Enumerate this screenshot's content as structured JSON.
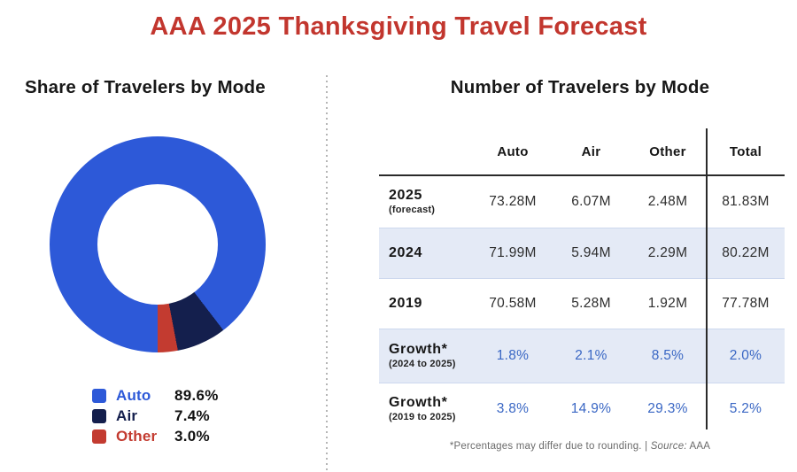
{
  "page": {
    "title": "AAA 2025 Thanksgiving Travel Forecast",
    "footnote_prefix": "*Percentages may differ due to rounding. |",
    "footnote_source_label": "Source:",
    "footnote_source_value": "AAA"
  },
  "colors": {
    "title_red": "#C2362E",
    "auto_blue": "#2D59D8",
    "air_navy": "#141F4D",
    "other_red": "#C33B30",
    "growth_blue": "#3A67C4",
    "band_blue": "#E4EAF6",
    "text_dark": "#1B1B1B",
    "line_dark": "#2A2A2A",
    "muted_gray": "#6B6B6B",
    "divider_gray": "#B5B5B5"
  },
  "chart_data": [
    {
      "type": "pie",
      "title": "Share of Travelers by Mode",
      "labels": [
        "Auto",
        "Air",
        "Other"
      ],
      "values": [
        89.6,
        7.4,
        3.0
      ],
      "unit": "%",
      "colors": [
        "#2D59D8",
        "#141F4D",
        "#C33B30"
      ],
      "donut": true,
      "start_angle_deg": 180,
      "direction": "clockwise",
      "legend_position": "bottom-left"
    },
    {
      "type": "table",
      "title": "Number of Travelers by Mode",
      "columns": [
        "",
        "Auto",
        "Air",
        "Other",
        "Total"
      ],
      "rows": [
        {
          "label": "2025",
          "sublabel": "(forecast)",
          "values": [
            "73.28M",
            "6.07M",
            "2.48M",
            "81.83M"
          ],
          "highlight": false,
          "value_style": "dark"
        },
        {
          "label": "2024",
          "sublabel": "",
          "values": [
            "71.99M",
            "5.94M",
            "2.29M",
            "80.22M"
          ],
          "highlight": true,
          "value_style": "dark"
        },
        {
          "label": "2019",
          "sublabel": "",
          "values": [
            "70.58M",
            "5.28M",
            "1.92M",
            "77.78M"
          ],
          "highlight": false,
          "value_style": "dark"
        },
        {
          "label": "Growth*",
          "sublabel": "(2024 to 2025)",
          "values": [
            "1.8%",
            "2.1%",
            "8.5%",
            "2.0%"
          ],
          "highlight": true,
          "value_style": "blue"
        },
        {
          "label": "Growth*",
          "sublabel": "(2019 to 2025)",
          "values": [
            "3.8%",
            "14.9%",
            "29.3%",
            "5.2%"
          ],
          "highlight": false,
          "value_style": "blue"
        }
      ]
    }
  ],
  "legend": {
    "items": [
      {
        "label": "Auto",
        "value": "89.6%"
      },
      {
        "label": "Air",
        "value": "7.4%"
      },
      {
        "label": "Other",
        "value": "3.0%"
      }
    ]
  }
}
